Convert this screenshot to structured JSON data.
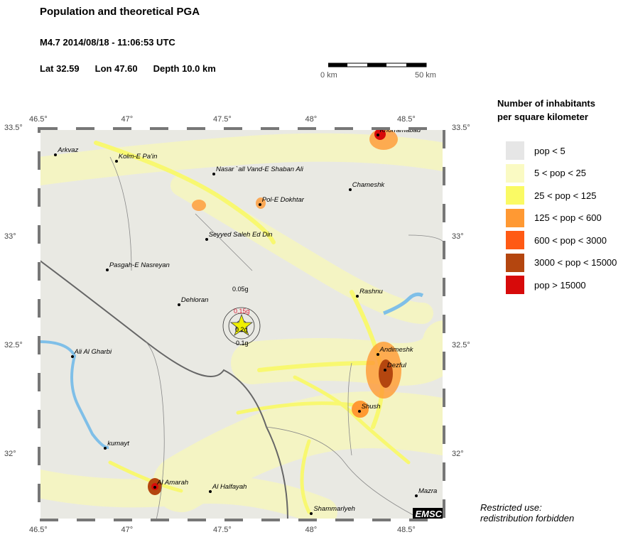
{
  "header": {
    "title": "Population and theoretical PGA",
    "event": "M4.7  2014/08/18 - 11:06:53 UTC",
    "lat": "Lat 32.59",
    "lon": "Lon  47.60",
    "depth": "Depth  10.0 km"
  },
  "scale_bar": {
    "start": "0 km",
    "end": "50 km"
  },
  "axes": {
    "lon_ticks": [
      "46.5°",
      "47°",
      "47.5°",
      "48°",
      "48.5°"
    ],
    "lat_ticks": [
      "33.5°",
      "33°",
      "32.5°",
      "32°"
    ],
    "lon_values": [
      46.5,
      47,
      47.5,
      48,
      48.5
    ],
    "lat_values": [
      33.5,
      33,
      32.5,
      32
    ],
    "lon_range": [
      46.5,
      48.7
    ],
    "lat_range": [
      31.7,
      33.5
    ]
  },
  "epicenter": {
    "lon": 47.6,
    "lat": 32.59
  },
  "pga_labels": [
    "0.05g",
    "0.15g",
    "0.2g",
    "0.1g"
  ],
  "cities": [
    {
      "name": "Khorramabad",
      "lon": 48.34,
      "lat": 33.47
    },
    {
      "name": "Arkvaz",
      "lon": 46.59,
      "lat": 33.38
    },
    {
      "name": "Kolm-E Pa'in",
      "lon": 46.92,
      "lat": 33.35
    },
    {
      "name": "Nasar `all Vand-E Shaban Ali",
      "lon": 47.45,
      "lat": 33.29
    },
    {
      "name": "Chameshk",
      "lon": 48.19,
      "lat": 33.22
    },
    {
      "name": "Pol-E Dokhtar",
      "lon": 47.7,
      "lat": 33.15
    },
    {
      "name": "Seyyed Saleh Ed Din",
      "lon": 47.41,
      "lat": 32.99
    },
    {
      "name": "Pasgah-E Nasreyan",
      "lon": 46.87,
      "lat": 32.85
    },
    {
      "name": "Rashnu",
      "lon": 48.23,
      "lat": 32.73
    },
    {
      "name": "Dehloran",
      "lon": 47.26,
      "lat": 32.69
    },
    {
      "name": "Ali Al Gharbi",
      "lon": 46.68,
      "lat": 32.45
    },
    {
      "name": "Andimeshk",
      "lon": 48.34,
      "lat": 32.46
    },
    {
      "name": "Dezful",
      "lon": 48.38,
      "lat": 32.39
    },
    {
      "name": "Shush",
      "lon": 48.24,
      "lat": 32.2
    },
    {
      "name": "kumayt",
      "lon": 46.86,
      "lat": 32.03
    },
    {
      "name": "Al Amarah",
      "lon": 47.13,
      "lat": 31.85
    },
    {
      "name": "Al Halfayah",
      "lon": 47.43,
      "lat": 31.83
    },
    {
      "name": "Mazra",
      "lon": 48.55,
      "lat": 31.81
    },
    {
      "name": "Shammarlyeh",
      "lon": 47.98,
      "lat": 31.73
    }
  ],
  "legend": {
    "title_line1": "Number of inhabitants",
    "title_line2": "per square kilometer",
    "items": [
      {
        "label": "pop < 5",
        "color": "#e6e6e6"
      },
      {
        "label": "5 < pop < 25",
        "color": "#fafac3"
      },
      {
        "label": "25 < pop < 125",
        "color": "#fafa64"
      },
      {
        "label": "125 < pop < 600",
        "color": "#ff9933"
      },
      {
        "label": "600 < pop < 3000",
        "color": "#ff5a14"
      },
      {
        "label": "3000 < pop < 15000",
        "color": "#b4460f"
      },
      {
        "label": "pop > 15000",
        "color": "#d70a0a"
      }
    ]
  },
  "logo": "EMSC",
  "footer": {
    "line1": "Restricted use:",
    "line2": "redistribution forbidden"
  }
}
